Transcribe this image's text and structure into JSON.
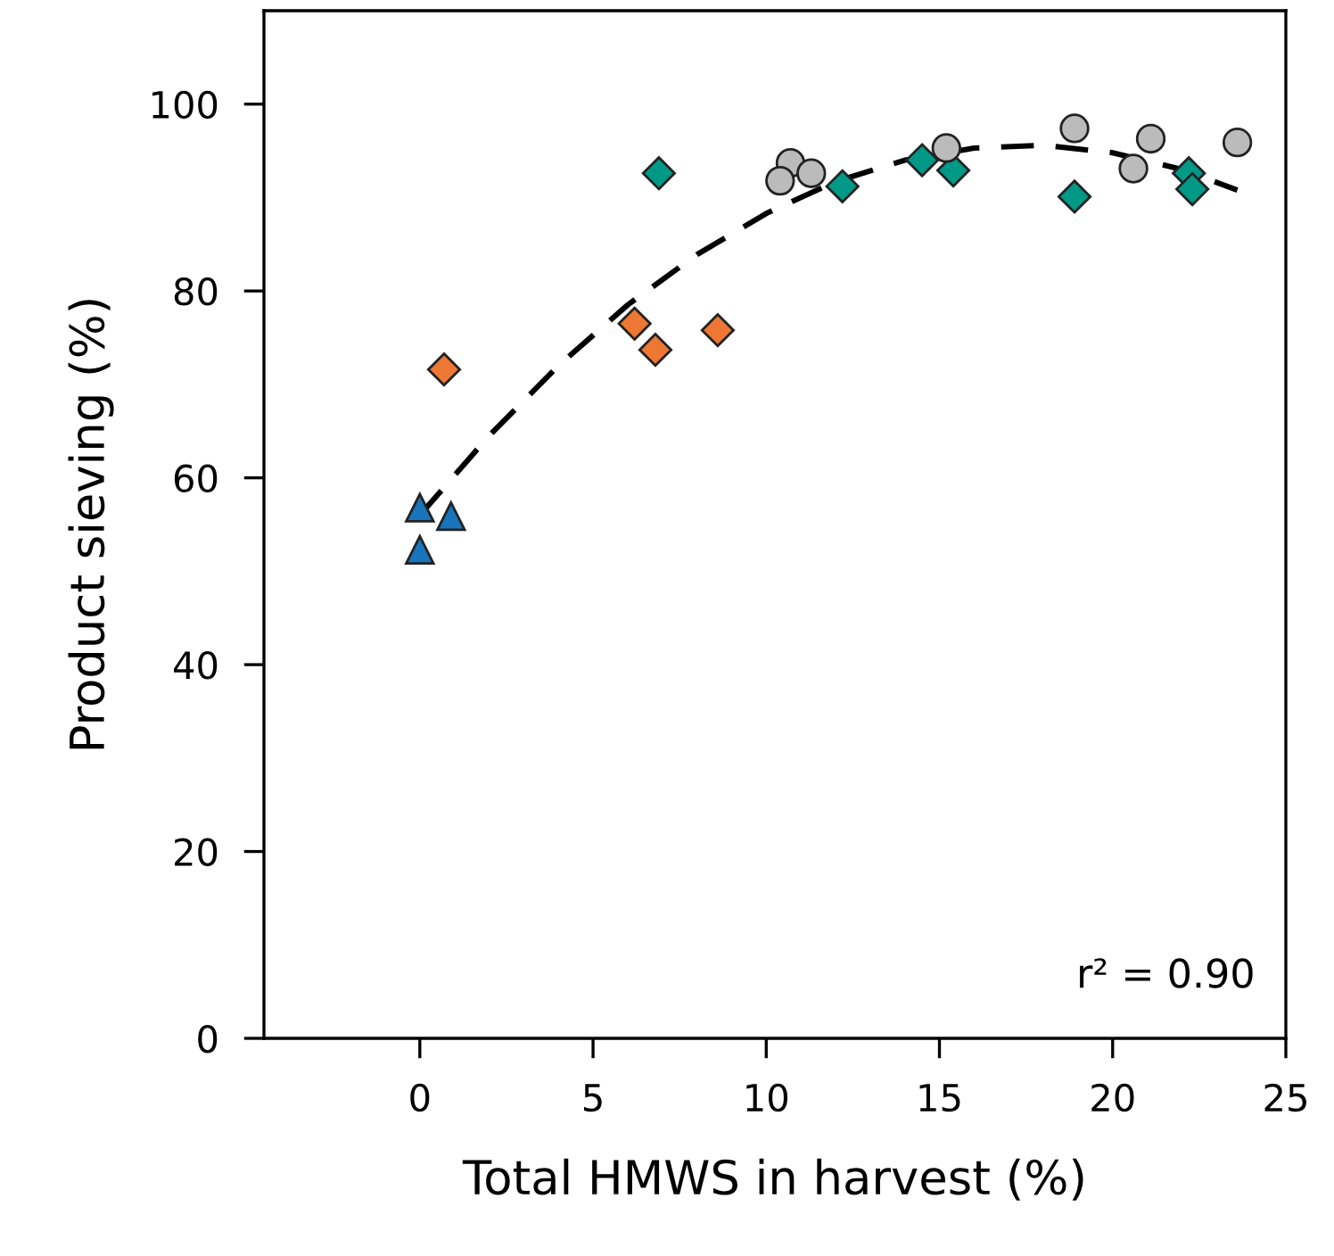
{
  "chart_data": {
    "type": "scatter",
    "xlabel": "Total HMWS in harvest (%)",
    "ylabel": "Product sieving (%)",
    "xlim": [
      -4.5,
      25
    ],
    "ylim": [
      0,
      110
    ],
    "xticks": [
      0,
      5,
      10,
      15,
      20,
      25
    ],
    "yticks": [
      0,
      20,
      40,
      60,
      80,
      100
    ],
    "grid": false,
    "legend": false,
    "annotations": [
      "r² = 0.90"
    ],
    "series": [
      {
        "color": "#1874bb",
        "marker": "triangle",
        "x": [
          0,
          0.9,
          0
        ],
        "values": [
          56.8,
          55.9,
          52.3
        ]
      },
      {
        "color": "#ee7733",
        "marker": "diamond",
        "x": [
          0.7,
          6.2,
          6.8,
          8.6
        ],
        "values": [
          71.6,
          76.5,
          73.7,
          75.8
        ]
      },
      {
        "color": "#009988",
        "marker": "diamond",
        "x": [
          6.9,
          12.2,
          14.5,
          15.4,
          18.9,
          22.2,
          22.3
        ],
        "values": [
          92.6,
          91.2,
          94.0,
          92.9,
          90.1,
          92.6,
          90.9
        ]
      },
      {
        "color": "#bbbbbb",
        "marker": "circle",
        "x": [
          10.7,
          10.4,
          11.3,
          15.2,
          18.9,
          21.1,
          20.6,
          23.6
        ],
        "values": [
          93.7,
          91.8,
          92.6,
          95.3,
          97.4,
          96.3,
          93.1,
          95.9
        ]
      },
      {
        "type": "line",
        "color": "#000000",
        "line_style": "dashed",
        "marker": "none",
        "x": [
          0,
          2,
          4,
          6,
          8,
          10,
          12,
          14,
          16,
          18,
          20,
          22,
          23.6
        ],
        "values": [
          56.0,
          64.5,
          72.0,
          78.5,
          83.9,
          88.3,
          91.7,
          94.0,
          95.3,
          95.6,
          94.8,
          93.0,
          90.8
        ]
      }
    ]
  }
}
